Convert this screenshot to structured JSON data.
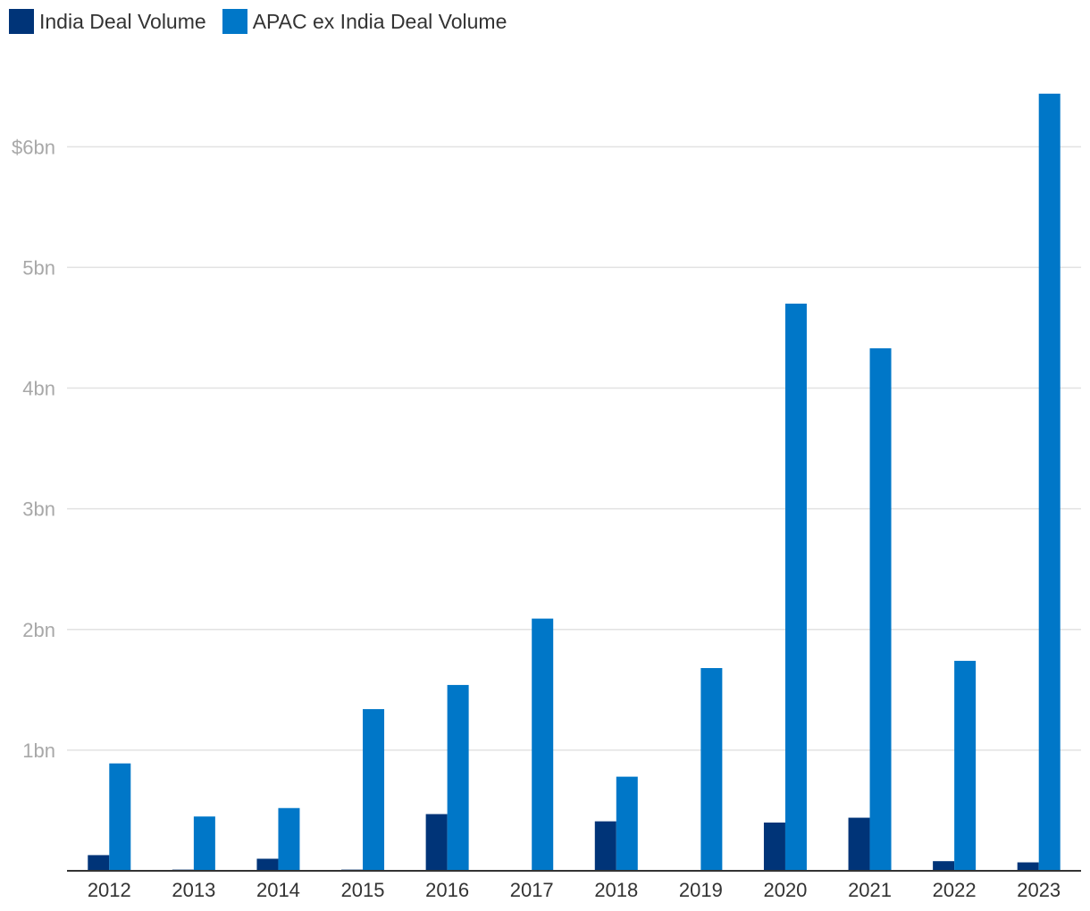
{
  "chart_data": {
    "type": "bar",
    "categories": [
      "2012",
      "2013",
      "2014",
      "2015",
      "2016",
      "2017",
      "2018",
      "2019",
      "2020",
      "2021",
      "2022",
      "2023"
    ],
    "series": [
      {
        "name": "India Deal Volume",
        "color": "#003478",
        "values": [
          0.13,
          0.01,
          0.1,
          0.01,
          0.47,
          0.0,
          0.41,
          0.0,
          0.4,
          0.44,
          0.08,
          0.07
        ]
      },
      {
        "name": "APAC ex India Deal Volume",
        "color": "#0077c8",
        "values": [
          0.89,
          0.45,
          0.52,
          1.34,
          1.54,
          2.09,
          0.78,
          1.68,
          4.7,
          4.33,
          1.74,
          6.44
        ]
      }
    ],
    "yticks": [
      {
        "value": 1,
        "label": "1bn"
      },
      {
        "value": 2,
        "label": "2bn"
      },
      {
        "value": 3,
        "label": "3bn"
      },
      {
        "value": 4,
        "label": "4bn"
      },
      {
        "value": 5,
        "label": "5bn"
      },
      {
        "value": 6,
        "label": "$6bn"
      }
    ],
    "ylim": [
      0,
      6.55
    ],
    "grid": true,
    "legend_position": "top-left"
  }
}
